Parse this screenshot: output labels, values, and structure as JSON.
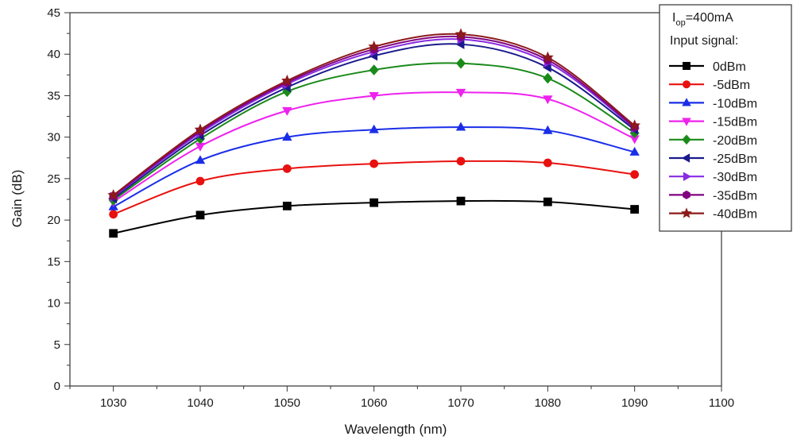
{
  "chart_data": {
    "type": "line",
    "xlabel": "Wavelength (nm)",
    "ylabel": "Gain (dB)",
    "xlim": [
      1025,
      1100
    ],
    "ylim": [
      0,
      45
    ],
    "xticks": [
      1030,
      1040,
      1050,
      1060,
      1070,
      1080,
      1090,
      1100
    ],
    "yticks": [
      0,
      5,
      10,
      15,
      20,
      25,
      30,
      35,
      40,
      45
    ],
    "grid": false,
    "legend_position": "top-right",
    "legend_title_main": "I",
    "legend_title_sub": "op",
    "legend_title_rest": "=400mA",
    "legend_heading": "Input signal:",
    "x": [
      1030,
      1040,
      1050,
      1060,
      1070,
      1080,
      1090
    ],
    "series": [
      {
        "name": "0dBm",
        "color": "#000000",
        "marker": "square",
        "values": [
          18.4,
          20.6,
          21.7,
          22.1,
          22.3,
          22.2,
          21.3
        ]
      },
      {
        "name": "-5dBm",
        "color": "#e8110f",
        "marker": "circle",
        "values": [
          20.7,
          24.7,
          26.2,
          26.8,
          27.1,
          26.9,
          25.5
        ]
      },
      {
        "name": "-10dBm",
        "color": "#1a2ee8",
        "marker": "triangle-up",
        "values": [
          21.6,
          27.2,
          30.0,
          30.9,
          31.2,
          30.8,
          28.2
        ]
      },
      {
        "name": "-15dBm",
        "color": "#ee22ee",
        "marker": "triangle-down",
        "values": [
          22.2,
          28.9,
          33.2,
          35.0,
          35.4,
          34.6,
          29.8
        ]
      },
      {
        "name": "-20dBm",
        "color": "#1a8a1a",
        "marker": "diamond",
        "values": [
          22.4,
          29.8,
          35.5,
          38.1,
          38.9,
          37.1,
          30.5
        ]
      },
      {
        "name": "-25dBm",
        "color": "#1a1a8c",
        "marker": "triangle-left",
        "values": [
          22.6,
          30.2,
          36.0,
          39.8,
          41.2,
          38.4,
          30.9
        ]
      },
      {
        "name": "-30dBm",
        "color": "#8a2be2",
        "marker": "triangle-right",
        "values": [
          22.8,
          30.5,
          36.4,
          40.3,
          41.8,
          39.0,
          31.1
        ]
      },
      {
        "name": "-35dBm",
        "color": "#800080",
        "marker": "hexagon",
        "values": [
          22.9,
          30.7,
          36.6,
          40.6,
          42.1,
          39.3,
          31.2
        ]
      },
      {
        "name": "-40dBm",
        "color": "#8b1a1a",
        "marker": "star",
        "values": [
          23.0,
          30.9,
          36.8,
          40.9,
          42.4,
          39.6,
          31.4
        ]
      }
    ]
  }
}
